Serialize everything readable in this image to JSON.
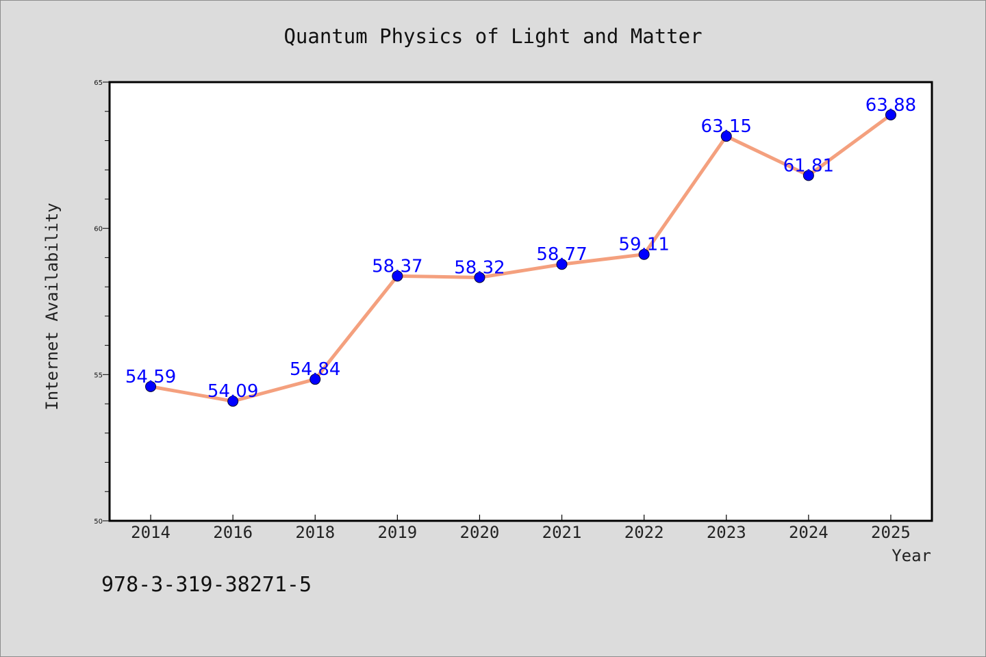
{
  "chart_data": {
    "type": "line",
    "title": "Quantum Physics of Light and Matter",
    "xlabel": "Year",
    "ylabel": "Internet Availability",
    "categories": [
      "2014",
      "2016",
      "2018",
      "2019",
      "2020",
      "2021",
      "2022",
      "2023",
      "2024",
      "2025"
    ],
    "series": [
      {
        "values": [
          54.59,
          54.09,
          54.84,
          58.37,
          58.32,
          58.77,
          59.11,
          63.15,
          61.81,
          63.88
        ]
      }
    ],
    "data_labels": [
      "54.59",
      "54.09",
      "54.84",
      "58.37",
      "58.32",
      "58.77",
      "59.11",
      "63.15",
      "61.81",
      "63.88"
    ],
    "ylim": [
      50,
      65
    ],
    "yticks": [
      "50",
      "55",
      "60",
      "65"
    ],
    "grid": false,
    "line_color": "#f4a07e",
    "marker_color": "#0000ff",
    "label_color": "#0000ff"
  },
  "footnote": "978-3-319-38271-5"
}
